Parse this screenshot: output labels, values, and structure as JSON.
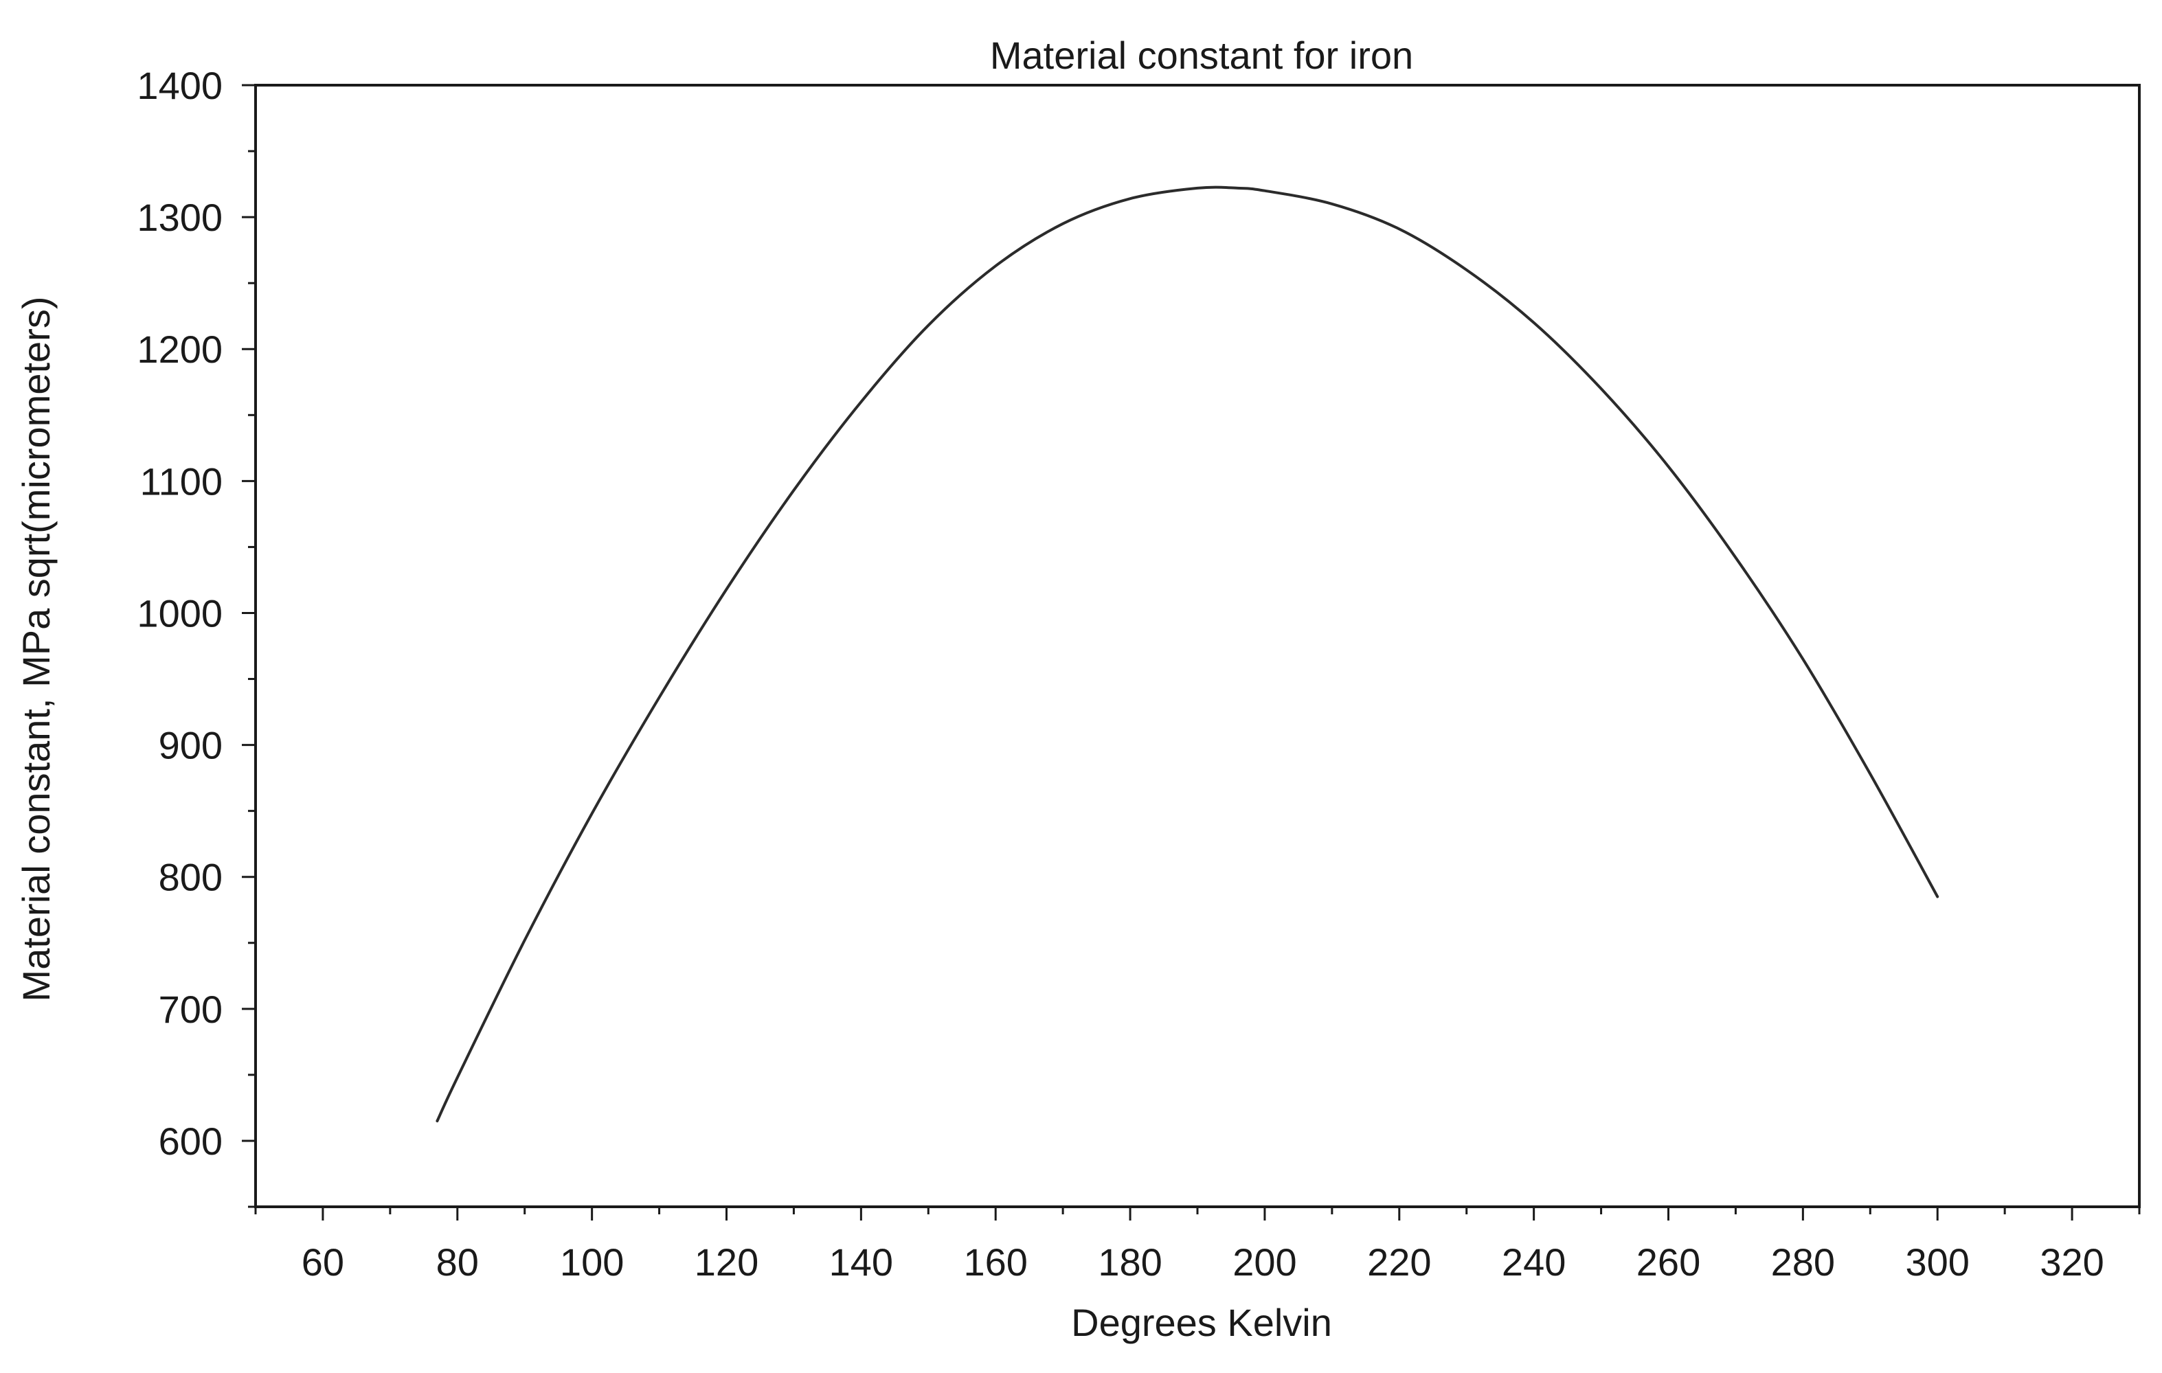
{
  "chart_data": {
    "type": "line",
    "title": "Material constant for  iron",
    "xlabel": "Degrees Kelvin",
    "ylabel": "Material constant, MPa sqrt(micrometers)",
    "xlim": [
      50,
      330
    ],
    "ylim": [
      550,
      1400
    ],
    "x_ticks": [
      60,
      80,
      100,
      120,
      140,
      160,
      180,
      200,
      220,
      240,
      260,
      280,
      300,
      320
    ],
    "y_ticks": [
      600,
      700,
      800,
      900,
      1000,
      1100,
      1200,
      1300,
      1400
    ],
    "grid": false,
    "legend": "none",
    "series": [
      {
        "color": "#2b2b2b",
        "x": [
          77,
          80,
          90,
          100,
          110,
          120,
          130,
          140,
          150,
          160,
          170,
          180,
          190,
          196,
          200,
          210,
          220,
          230,
          240,
          250,
          260,
          270,
          280,
          290,
          300
        ],
        "y": [
          615,
          648,
          752,
          848,
          936,
          1018,
          1093,
          1160,
          1218,
          1263,
          1295,
          1314,
          1322,
          1322,
          1320,
          1310,
          1291,
          1260,
          1220,
          1170,
          1111,
          1042,
          965,
          878,
          785
        ]
      }
    ]
  }
}
